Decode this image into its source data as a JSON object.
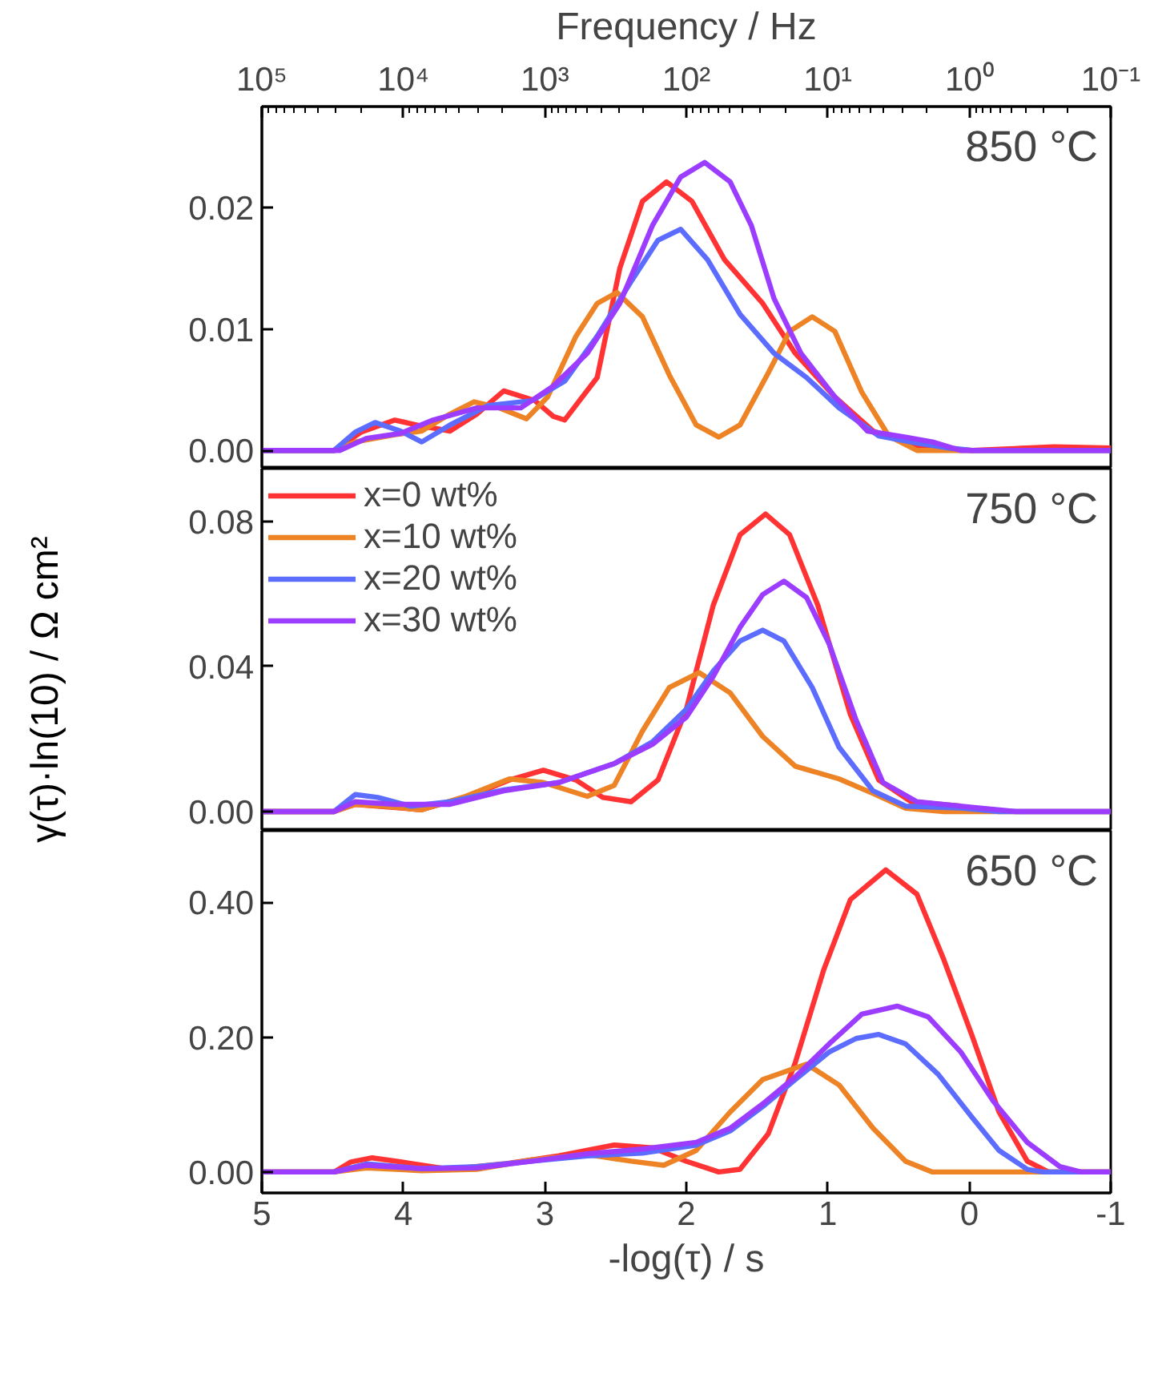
{
  "chart_data": [
    {
      "type": "line",
      "x2label": "Frequency / Hz",
      "annotations": [
        "850 °C"
      ],
      "grid": false,
      "tick_labels": "y",
      "log": "x2",
      "xlim": [
        5,
        -1
      ],
      "xticks": [
        5,
        4,
        3,
        2,
        1,
        0,
        -1
      ],
      "x2lim": [
        100000,
        0.1
      ],
      "x2ticks": [
        {
          "value": 100000,
          "label": "10⁵"
        },
        {
          "value": 10000,
          "label": "10⁴"
        },
        {
          "value": 1000,
          "label": "10³"
        },
        {
          "value": 100,
          "label": "10²"
        },
        {
          "value": 10,
          "label": "10¹"
        },
        {
          "value": 1,
          "label": "10⁰"
        },
        {
          "value": 0.1,
          "label": "10⁻¹"
        }
      ],
      "ylim": [
        -0.0015,
        0.0283
      ],
      "yticks": [
        {
          "value": 0,
          "label": "0.00"
        },
        {
          "value": 0.01,
          "label": "0.01"
        },
        {
          "value": 0.02,
          "label": "0.02"
        }
      ],
      "series": [
        {
          "color": "#ff3333",
          "x": [
            5,
            4.49,
            4.3,
            4.06,
            3.87,
            3.67,
            3.48,
            3.29,
            3.07,
            2.94,
            2.86,
            2.63,
            2.47,
            2.31,
            2.14,
            1.96,
            1.73,
            1.46,
            1.23,
            0.95,
            0.68,
            0.37,
            -0.02,
            -0.6,
            -1
          ],
          "values": [
            0,
            0,
            0.0015,
            0.0025,
            0.002,
            0.0016,
            0.003,
            0.0049,
            0.0041,
            0.0028,
            0.0025,
            0.006,
            0.015,
            0.0205,
            0.0221,
            0.0205,
            0.0157,
            0.0121,
            0.008,
            0.0044,
            0.0016,
            0.0003,
            0,
            0.0003,
            0.0002
          ]
        },
        {
          "color": "#ee8326",
          "x": [
            5,
            4.49,
            4.34,
            4.06,
            3.87,
            3.67,
            3.5,
            3.32,
            3.13,
            2.98,
            2.78,
            2.63,
            2.49,
            2.31,
            2.12,
            1.93,
            1.77,
            1.62,
            1.42,
            1.27,
            1.11,
            0.95,
            0.76,
            0.57,
            0.37,
            -1
          ],
          "values": [
            0,
            0,
            0.0007,
            0.0013,
            0.0016,
            0.003,
            0.004,
            0.0035,
            0.0026,
            0.0044,
            0.0094,
            0.0121,
            0.013,
            0.011,
            0.0062,
            0.0021,
            0.0011,
            0.0021,
            0.0064,
            0.0098,
            0.011,
            0.0098,
            0.0048,
            0.0012,
            0,
            0
          ]
        },
        {
          "color": "#5b6cff",
          "x": [
            5,
            4.49,
            4.34,
            4.2,
            4.02,
            3.87,
            3.67,
            3.4,
            3.09,
            2.86,
            2.63,
            2.39,
            2.2,
            2.04,
            1.85,
            1.62,
            1.38,
            1.15,
            0.92,
            0.64,
            0.37,
            0.14,
            -0.02,
            -1
          ],
          "values": [
            0,
            0,
            0.0015,
            0.0023,
            0.0016,
            0.0007,
            0.0021,
            0.0037,
            0.0041,
            0.0057,
            0.0094,
            0.0139,
            0.0173,
            0.0182,
            0.0157,
            0.0112,
            0.008,
            0.006,
            0.0035,
            0.0012,
            0.0006,
            0.0002,
            0,
            0
          ]
        },
        {
          "color": "#9b3cff",
          "x": [
            5,
            4.45,
            4.26,
            4.02,
            3.79,
            3.48,
            3.17,
            2.94,
            2.7,
            2.47,
            2.24,
            2.04,
            1.87,
            1.69,
            1.54,
            1.38,
            1.19,
            0.95,
            0.72,
            0.45,
            0.26,
            0.06,
            -1
          ],
          "values": [
            0,
            0,
            0.001,
            0.0014,
            0.0025,
            0.0035,
            0.0035,
            0.0053,
            0.008,
            0.0121,
            0.0185,
            0.0225,
            0.0237,
            0.0221,
            0.0185,
            0.0125,
            0.008,
            0.0044,
            0.0016,
            0.0011,
            0.0007,
            0,
            0
          ]
        }
      ]
    },
    {
      "type": "line",
      "ylabel": "γ(τ)·ln(10) / Ω cm²",
      "annotations": [
        "750 °C"
      ],
      "grid": false,
      "tick_labels": "y",
      "legend": "top left",
      "xlim": [
        5,
        -1
      ],
      "xticks": [
        5,
        4,
        3,
        2,
        1,
        0,
        -1
      ],
      "ylim": [
        -0.0053,
        0.0945
      ],
      "yticks": [
        {
          "value": 0,
          "label": "0.00"
        },
        {
          "value": 0.04,
          "label": "0.04"
        },
        {
          "value": 0.08,
          "label": "0.08"
        }
      ],
      "series": [
        {
          "name": "x=0 wt%",
          "color": "#ff3333",
          "x": [
            5,
            4.49,
            4.34,
            4.18,
            3.87,
            3.48,
            3.25,
            3.01,
            2.78,
            2.59,
            2.39,
            2.2,
            2.0,
            1.81,
            1.62,
            1.44,
            1.27,
            1.07,
            0.84,
            0.64,
            0.41,
            0.06
          ],
          "values": [
            0,
            0,
            0.002,
            0.0015,
            0.0005,
            0.005,
            0.0087,
            0.0114,
            0.0087,
            0.0039,
            0.0027,
            0.0087,
            0.0282,
            0.0568,
            0.0763,
            0.082,
            0.0763,
            0.0568,
            0.0267,
            0.0087,
            0.0027,
            0.0015
          ]
        },
        {
          "name": "x=10 wt%",
          "color": "#ee8326",
          "x": [
            5,
            4.49,
            4.34,
            4.14,
            3.87,
            3.56,
            3.25,
            3.01,
            2.7,
            2.51,
            2.31,
            2.12,
            1.91,
            1.69,
            1.46,
            1.23,
            0.92,
            0.68,
            0.45,
            0.18,
            -1
          ],
          "values": [
            0,
            0,
            0.002,
            0.0015,
            0.0005,
            0.0042,
            0.009,
            0.008,
            0.0042,
            0.0072,
            0.0222,
            0.0342,
            0.0383,
            0.0327,
            0.0207,
            0.0125,
            0.009,
            0.005,
            0.0009,
            0,
            0
          ]
        },
        {
          "name": "x=20 wt%",
          "color": "#5b6cff",
          "x": [
            5,
            4.49,
            4.34,
            4.18,
            3.95,
            3.67,
            3.29,
            2.9,
            2.51,
            2.24,
            2.0,
            1.81,
            1.62,
            1.46,
            1.31,
            1.11,
            0.92,
            0.68,
            0.45,
            0.06,
            -0.21,
            -1
          ],
          "values": [
            0,
            0,
            0.0047,
            0.0039,
            0.0015,
            0.0027,
            0.006,
            0.008,
            0.0132,
            0.0192,
            0.0282,
            0.0387,
            0.047,
            0.05,
            0.047,
            0.0342,
            0.0177,
            0.0057,
            0.0015,
            0.001,
            0,
            0
          ]
        },
        {
          "name": "x=30 wt%",
          "color": "#9b3cff",
          "x": [
            5,
            4.49,
            4.34,
            4.06,
            3.67,
            3.29,
            2.9,
            2.51,
            2.24,
            2.0,
            1.81,
            1.62,
            1.46,
            1.31,
            1.15,
            0.99,
            0.8,
            0.61,
            0.37,
            -0.02,
            -0.33,
            -1
          ],
          "values": [
            0,
            0,
            0.0027,
            0.002,
            0.002,
            0.0057,
            0.008,
            0.0132,
            0.0185,
            0.026,
            0.0372,
            0.0508,
            0.0598,
            0.0635,
            0.059,
            0.0462,
            0.0252,
            0.008,
            0.0027,
            0.0012,
            0,
            0
          ]
        }
      ]
    },
    {
      "type": "line",
      "xlabel": "-log(τ) / s",
      "annotations": [
        "650 °C"
      ],
      "grid": false,
      "xlim": [
        5,
        -1
      ],
      "xticks": [
        5,
        4,
        3,
        2,
        1,
        0,
        -1
      ],
      "ylim": [
        -0.031,
        0.506
      ],
      "yticks": [
        {
          "value": 0,
          "label": "0.00"
        },
        {
          "value": 0.2,
          "label": "0.20"
        },
        {
          "value": 0.4,
          "label": "0.40"
        }
      ],
      "series": [
        {
          "color": "#ff3333",
          "x": [
            5,
            4.49,
            4.37,
            4.22,
            4.02,
            3.67,
            3.29,
            2.9,
            2.51,
            2.24,
            2.0,
            1.77,
            1.62,
            1.42,
            1.23,
            1.03,
            0.84,
            0.59,
            0.37,
            0.18,
            -0.02,
            -0.21,
            -0.41,
            -0.56,
            -1
          ],
          "values": [
            0,
            0,
            0.015,
            0.021,
            0.015,
            0.004,
            0.012,
            0.024,
            0.04,
            0.036,
            0.016,
            0,
            0.004,
            0.057,
            0.162,
            0.299,
            0.404,
            0.448,
            0.412,
            0.315,
            0.202,
            0.089,
            0.016,
            0,
            0
          ]
        },
        {
          "color": "#ee8326",
          "x": [
            5,
            4.49,
            4.26,
            3.87,
            3.48,
            3.09,
            2.7,
            2.39,
            2.16,
            1.93,
            1.69,
            1.46,
            1.15,
            0.92,
            0.68,
            0.45,
            0.26,
            -1
          ],
          "values": [
            0,
            0,
            0.006,
            0.002,
            0.004,
            0.018,
            0.026,
            0.016,
            0.01,
            0.032,
            0.089,
            0.137,
            0.16,
            0.129,
            0.065,
            0.016,
            0,
            0
          ]
        },
        {
          "color": "#5b6cff",
          "x": [
            5,
            4.49,
            4.26,
            3.87,
            3.48,
            3.09,
            2.7,
            2.31,
            1.93,
            1.69,
            1.46,
            1.23,
            0.99,
            0.8,
            0.64,
            0.45,
            0.22,
            -0.02,
            -0.21,
            -0.41,
            -0.52,
            -1
          ],
          "values": [
            0,
            0,
            0.012,
            0.005,
            0.008,
            0.016,
            0.024,
            0.028,
            0.04,
            0.061,
            0.097,
            0.137,
            0.178,
            0.198,
            0.204,
            0.19,
            0.145,
            0.081,
            0.032,
            0.004,
            0,
            0
          ]
        },
        {
          "color": "#9b3cff",
          "x": [
            5,
            4.49,
            4.26,
            3.87,
            3.48,
            3.09,
            2.7,
            2.31,
            1.93,
            1.69,
            1.46,
            1.23,
            0.99,
            0.76,
            0.51,
            0.29,
            0.06,
            -0.17,
            -0.41,
            -0.64,
            -0.79,
            -1
          ],
          "values": [
            0,
            0,
            0.01,
            0.005,
            0.006,
            0.016,
            0.027,
            0.034,
            0.044,
            0.065,
            0.101,
            0.141,
            0.19,
            0.234,
            0.246,
            0.23,
            0.178,
            0.105,
            0.044,
            0.008,
            0,
            0
          ]
        }
      ]
    }
  ]
}
